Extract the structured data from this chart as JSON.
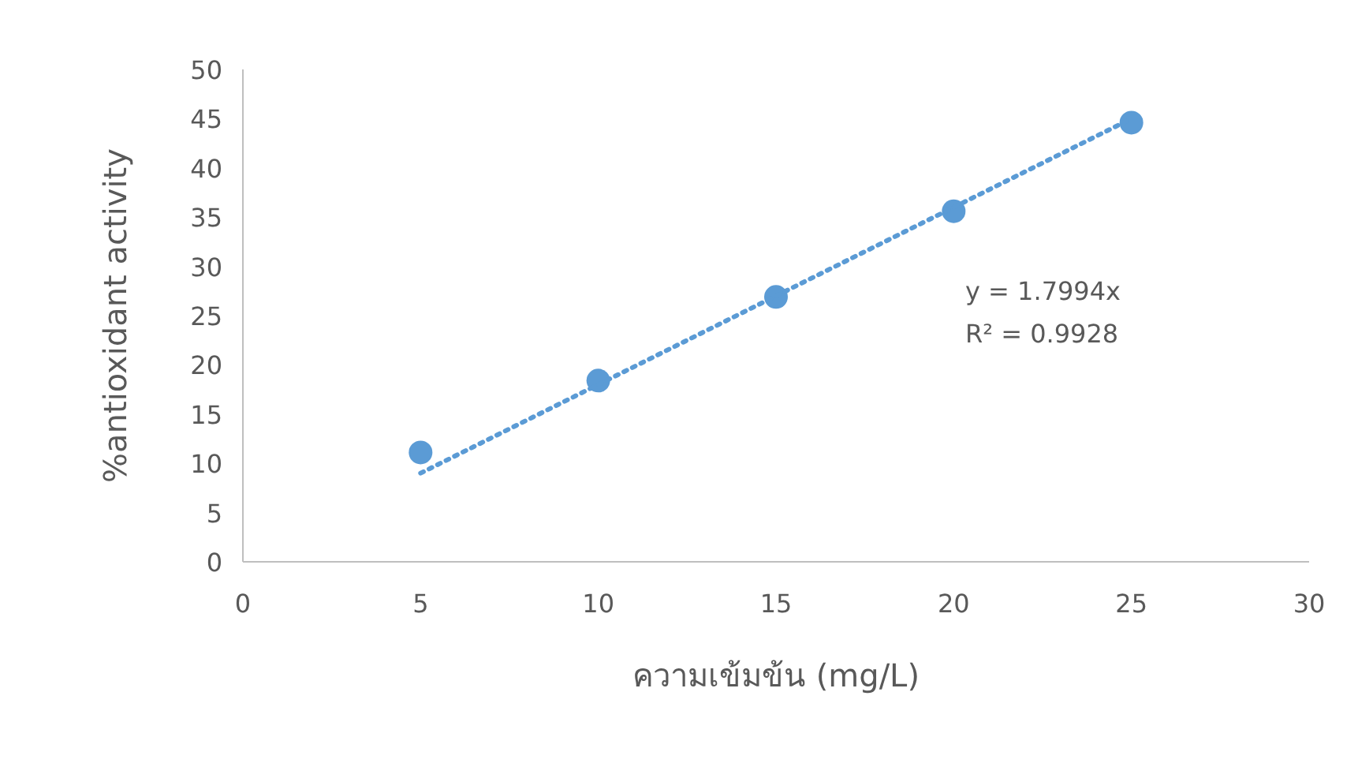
{
  "chart_data": {
    "type": "scatter",
    "xlabel": "ความเข้มข้น (mg/L)",
    "ylabel": "%antioxidant activity",
    "xlim": [
      0,
      30
    ],
    "xticks": [
      0,
      5,
      10,
      15,
      20,
      25,
      30
    ],
    "ylim": [
      0,
      50
    ],
    "yticks": [
      0,
      5,
      10,
      15,
      20,
      25,
      30,
      35,
      40,
      45,
      50
    ],
    "annotations": [
      "y = 1.7994x",
      "R² = 0.9928"
    ],
    "series": [
      {
        "type": "scatter",
        "color": "#5b9bd5",
        "marker": "circle",
        "x": [
          5,
          10,
          15,
          20,
          25
        ],
        "values": [
          11.1,
          18.4,
          26.9,
          35.6,
          44.6
        ]
      },
      {
        "type": "line",
        "color": "#5b9bd5",
        "marker": "none",
        "line_style": "dotted",
        "x": [
          5,
          25
        ],
        "values": [
          9.0,
          45.0
        ]
      }
    ]
  }
}
